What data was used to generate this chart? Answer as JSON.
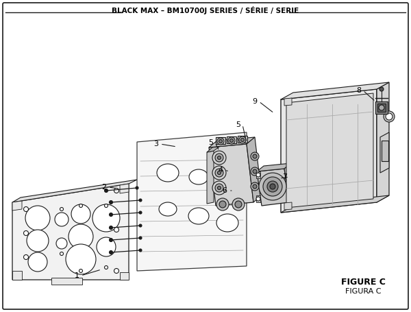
{
  "title": "BLACK MAX – BM10700J SERIES / SÉRIE / SERIE",
  "figure_label": "FIGURE C",
  "figure_label2": "FIGURA C",
  "bg_color": "#ffffff",
  "line_color": "#1a1a1a",
  "text_color": "#000000",
  "labels": [
    [
      "1",
      112,
      402,
      148,
      393
    ],
    [
      "2",
      152,
      273,
      174,
      275
    ],
    [
      "3",
      228,
      210,
      258,
      214
    ],
    [
      "4",
      322,
      248,
      335,
      250
    ],
    [
      "5",
      348,
      182,
      360,
      208
    ],
    [
      "5",
      308,
      208,
      320,
      220
    ],
    [
      "6",
      328,
      278,
      338,
      278
    ],
    [
      "7",
      416,
      258,
      408,
      260
    ],
    [
      "8",
      524,
      132,
      548,
      148
    ],
    [
      "9",
      372,
      148,
      400,
      165
    ]
  ]
}
